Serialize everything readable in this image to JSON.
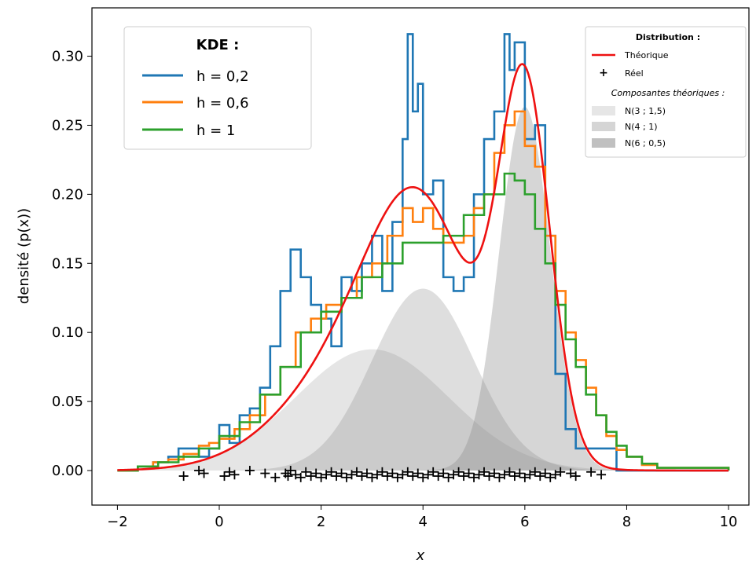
{
  "chart_data": {
    "type": "line",
    "xlabel": "x",
    "ylabel": "densité (p(x))",
    "xlim": [
      -2.5,
      10.4
    ],
    "ylim": [
      -0.025,
      0.335
    ],
    "xticks": [
      -2,
      0,
      2,
      4,
      6,
      8,
      10
    ],
    "xtick_labels": [
      "−2",
      "0",
      "2",
      "4",
      "6",
      "8",
      "10"
    ],
    "yticks": [
      0.0,
      0.05,
      0.1,
      0.15,
      0.2,
      0.25,
      0.3
    ],
    "ytick_labels": [
      "0.00",
      "0.05",
      "0.10",
      "0.15",
      "0.20",
      "0.25",
      "0.30"
    ],
    "grid": false,
    "legend_kde": {
      "title": "KDE :",
      "placement": "top-left",
      "entries": [
        {
          "label": "h = 0,2",
          "color": "#1f77b4"
        },
        {
          "label": "h = 0,6",
          "color": "#ff7f0e"
        },
        {
          "label": "h = 1",
          "color": "#2ca02c"
        }
      ]
    },
    "legend_distribution": {
      "title": "Distribution :",
      "placement": "top-right",
      "theoretical_label": "Théorique",
      "theoretical_color": "#ee1111",
      "real_label": "Réel",
      "components_title": "Composantes théoriques :",
      "components": [
        {
          "label": "N(3 ; 1,5)",
          "color": "#e6e6e6"
        },
        {
          "label": "N(4 ; 1)",
          "color": "#d5d5d5"
        },
        {
          "label": "N(6 ; 0,5)",
          "color": "#c0c0c0"
        }
      ]
    },
    "mixture": {
      "range": [
        -2,
        10
      ],
      "components": [
        {
          "name": "N(3 ; 1,5)",
          "mean": 3,
          "sd": 1.5,
          "weight": 0.33
        },
        {
          "name": "N(4 ; 1)",
          "mean": 4,
          "sd": 1,
          "weight": 0.33
        },
        {
          "name": "N(6 ; 0,5)",
          "mean": 6,
          "sd": 0.5,
          "weight": 0.33
        }
      ]
    },
    "series": [
      {
        "name": "h = 0,2",
        "color": "#1f77b4",
        "x": [
          -2,
          -1.6,
          -1.3,
          -1.0,
          -0.8,
          -0.6,
          -0.4,
          -0.2,
          0.0,
          0.2,
          0.4,
          0.6,
          0.8,
          1.0,
          1.2,
          1.4,
          1.6,
          1.8,
          2.0,
          2.2,
          2.4,
          2.6,
          2.8,
          3.0,
          3.2,
          3.4,
          3.6,
          3.7,
          3.8,
          3.9,
          4.0,
          4.2,
          4.4,
          4.6,
          4.8,
          5.0,
          5.2,
          5.4,
          5.6,
          5.7,
          5.8,
          6.0,
          6.2,
          6.4,
          6.6,
          6.8,
          7.0,
          7.2,
          7.4,
          7.6,
          7.8,
          8.0,
          10
        ],
        "y": [
          0.0,
          0.003,
          0.006,
          0.01,
          0.016,
          0.016,
          0.01,
          0.016,
          0.033,
          0.02,
          0.04,
          0.045,
          0.06,
          0.09,
          0.13,
          0.16,
          0.14,
          0.12,
          0.11,
          0.09,
          0.14,
          0.13,
          0.15,
          0.17,
          0.13,
          0.18,
          0.24,
          0.316,
          0.26,
          0.28,
          0.2,
          0.21,
          0.14,
          0.13,
          0.14,
          0.2,
          0.24,
          0.26,
          0.316,
          0.29,
          0.31,
          0.24,
          0.25,
          0.17,
          0.07,
          0.03,
          0.016,
          0.016,
          0.016,
          0.016,
          0.0,
          0.0,
          0.0
        ]
      },
      {
        "name": "h = 0,6",
        "color": "#ff7f0e",
        "x": [
          -2,
          -1.6,
          -1.3,
          -1.0,
          -0.7,
          -0.4,
          -0.2,
          0.0,
          0.3,
          0.6,
          0.9,
          1.2,
          1.5,
          1.8,
          2.1,
          2.4,
          2.7,
          3.0,
          3.3,
          3.6,
          3.8,
          4.0,
          4.2,
          4.4,
          4.6,
          4.8,
          5.0,
          5.2,
          5.4,
          5.6,
          5.8,
          6.0,
          6.2,
          6.4,
          6.6,
          6.8,
          7.0,
          7.2,
          7.4,
          7.6,
          7.8,
          8.0,
          8.3,
          8.6,
          10
        ],
        "y": [
          0.0,
          0.003,
          0.006,
          0.008,
          0.012,
          0.018,
          0.02,
          0.023,
          0.03,
          0.04,
          0.055,
          0.075,
          0.1,
          0.11,
          0.12,
          0.125,
          0.14,
          0.15,
          0.17,
          0.19,
          0.18,
          0.19,
          0.175,
          0.165,
          0.165,
          0.17,
          0.19,
          0.2,
          0.23,
          0.25,
          0.26,
          0.235,
          0.22,
          0.17,
          0.13,
          0.1,
          0.08,
          0.06,
          0.04,
          0.025,
          0.015,
          0.01,
          0.004,
          0.002,
          0.0
        ]
      },
      {
        "name": "h = 1",
        "color": "#2ca02c",
        "x": [
          -2,
          -1.6,
          -1.2,
          -0.8,
          -0.4,
          0.0,
          0.4,
          0.8,
          1.2,
          1.6,
          2.0,
          2.4,
          2.8,
          3.2,
          3.6,
          4.0,
          4.4,
          4.8,
          5.2,
          5.6,
          5.8,
          6.0,
          6.2,
          6.4,
          6.6,
          6.8,
          7.0,
          7.2,
          7.4,
          7.6,
          7.8,
          8.0,
          8.3,
          8.6,
          10
        ],
        "y": [
          0.0,
          0.003,
          0.006,
          0.01,
          0.016,
          0.025,
          0.035,
          0.055,
          0.075,
          0.1,
          0.115,
          0.125,
          0.14,
          0.15,
          0.165,
          0.165,
          0.17,
          0.185,
          0.2,
          0.215,
          0.21,
          0.2,
          0.175,
          0.15,
          0.12,
          0.095,
          0.075,
          0.055,
          0.04,
          0.028,
          0.018,
          0.01,
          0.005,
          0.002,
          0.0
        ]
      }
    ],
    "real_samples": {
      "marker": "+",
      "color": "#000000",
      "x": [
        -0.7,
        -0.4,
        -0.3,
        0.1,
        0.2,
        0.3,
        0.6,
        0.9,
        1.1,
        1.3,
        1.35,
        1.4,
        1.5,
        1.6,
        1.7,
        1.8,
        1.9,
        2.0,
        2.1,
        2.2,
        2.3,
        2.4,
        2.5,
        2.6,
        2.7,
        2.8,
        2.9,
        3.0,
        3.1,
        3.2,
        3.3,
        3.4,
        3.5,
        3.6,
        3.7,
        3.8,
        3.9,
        4.0,
        4.1,
        4.2,
        4.3,
        4.4,
        4.5,
        4.6,
        4.7,
        4.8,
        4.9,
        5.0,
        5.1,
        5.2,
        5.3,
        5.4,
        5.5,
        5.6,
        5.7,
        5.8,
        5.9,
        6.0,
        6.1,
        6.2,
        6.3,
        6.4,
        6.5,
        6.6,
        6.7,
        6.9,
        7.0,
        7.3,
        7.5
      ],
      "y": [
        -0.004,
        0.0,
        -0.002,
        -0.004,
        -0.001,
        -0.003,
        0.0,
        -0.002,
        -0.005,
        -0.002,
        -0.004,
        0.0,
        -0.003,
        -0.005,
        -0.001,
        -0.004,
        -0.002,
        -0.005,
        -0.003,
        -0.001,
        -0.004,
        -0.002,
        -0.005,
        -0.003,
        -0.001,
        -0.004,
        -0.002,
        -0.005,
        -0.003,
        -0.001,
        -0.004,
        -0.002,
        -0.005,
        -0.003,
        -0.001,
        -0.004,
        -0.002,
        -0.005,
        -0.003,
        -0.001,
        -0.004,
        -0.002,
        -0.005,
        -0.003,
        -0.001,
        -0.004,
        -0.002,
        -0.005,
        -0.003,
        -0.001,
        -0.004,
        -0.002,
        -0.005,
        -0.003,
        -0.001,
        -0.004,
        -0.002,
        -0.005,
        -0.003,
        -0.001,
        -0.004,
        -0.002,
        -0.005,
        -0.003,
        -0.001,
        -0.002,
        -0.004,
        -0.001,
        -0.003
      ]
    }
  }
}
